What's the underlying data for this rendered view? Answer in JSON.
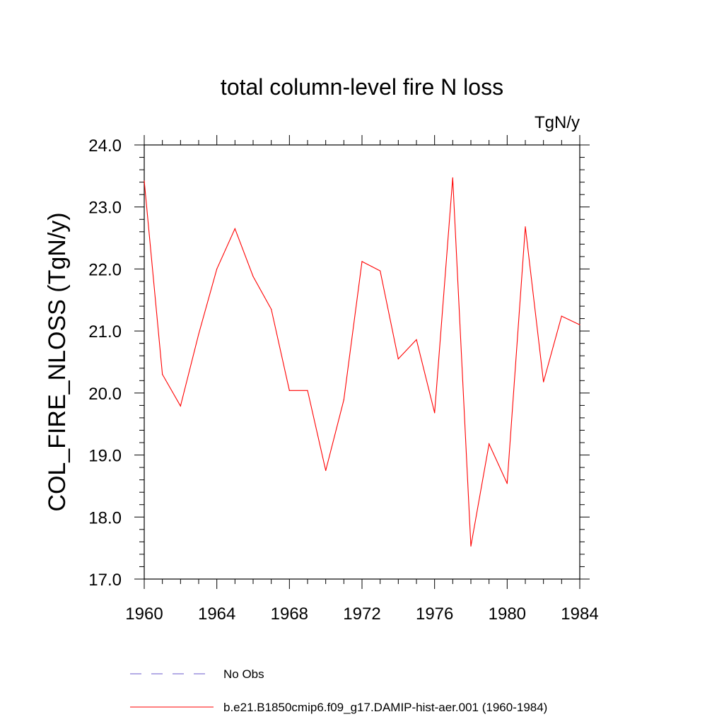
{
  "chart_data": {
    "type": "line",
    "title": "total column-level fire N loss",
    "units_label": "TgN/y",
    "ylabel": "COL_FIRE_NLOSS  (TgN/y)",
    "xlabel": "",
    "xlim": [
      1960,
      1984
    ],
    "ylim": [
      17.0,
      24.0
    ],
    "x_ticks": [
      1960,
      1964,
      1968,
      1972,
      1976,
      1980,
      1984
    ],
    "x_tick_labels": [
      "1960",
      "1964",
      "1968",
      "1972",
      "1976",
      "1980",
      "1984"
    ],
    "y_ticks": [
      17,
      18,
      19,
      20,
      21,
      22,
      23,
      24
    ],
    "y_tick_labels": [
      "17.0",
      "18.0",
      "19.0",
      "20.0",
      "21.0",
      "22.0",
      "23.0",
      "24.0"
    ],
    "grid": false,
    "legend_position": "bottom",
    "series": [
      {
        "name": "b.e21.B1850cmip6.f09_g17.DAMIP-hist-aer.001 (1960-1984)",
        "color": "#ff0000",
        "style": "solid",
        "x": [
          1960,
          1961,
          1962,
          1963,
          1964,
          1965,
          1966,
          1967,
          1968,
          1969,
          1970,
          1971,
          1972,
          1973,
          1974,
          1975,
          1976,
          1977,
          1978,
          1979,
          1980,
          1981,
          1982,
          1983,
          1984
        ],
        "values": [
          23.42,
          20.3,
          19.79,
          20.95,
          22.0,
          22.65,
          21.88,
          21.35,
          20.04,
          20.04,
          18.75,
          19.89,
          22.12,
          21.97,
          20.55,
          20.86,
          19.68,
          23.47,
          17.53,
          19.18,
          18.54,
          22.68,
          20.18,
          21.24,
          21.1
        ]
      }
    ],
    "legend": [
      {
        "label": "No Obs",
        "color": "#6a5acd",
        "style": "dashed"
      },
      {
        "label": "b.e21.B1850cmip6.f09_g17.DAMIP-hist-aer.001 (1960-1984)",
        "color": "#ff0000",
        "style": "solid"
      }
    ]
  }
}
